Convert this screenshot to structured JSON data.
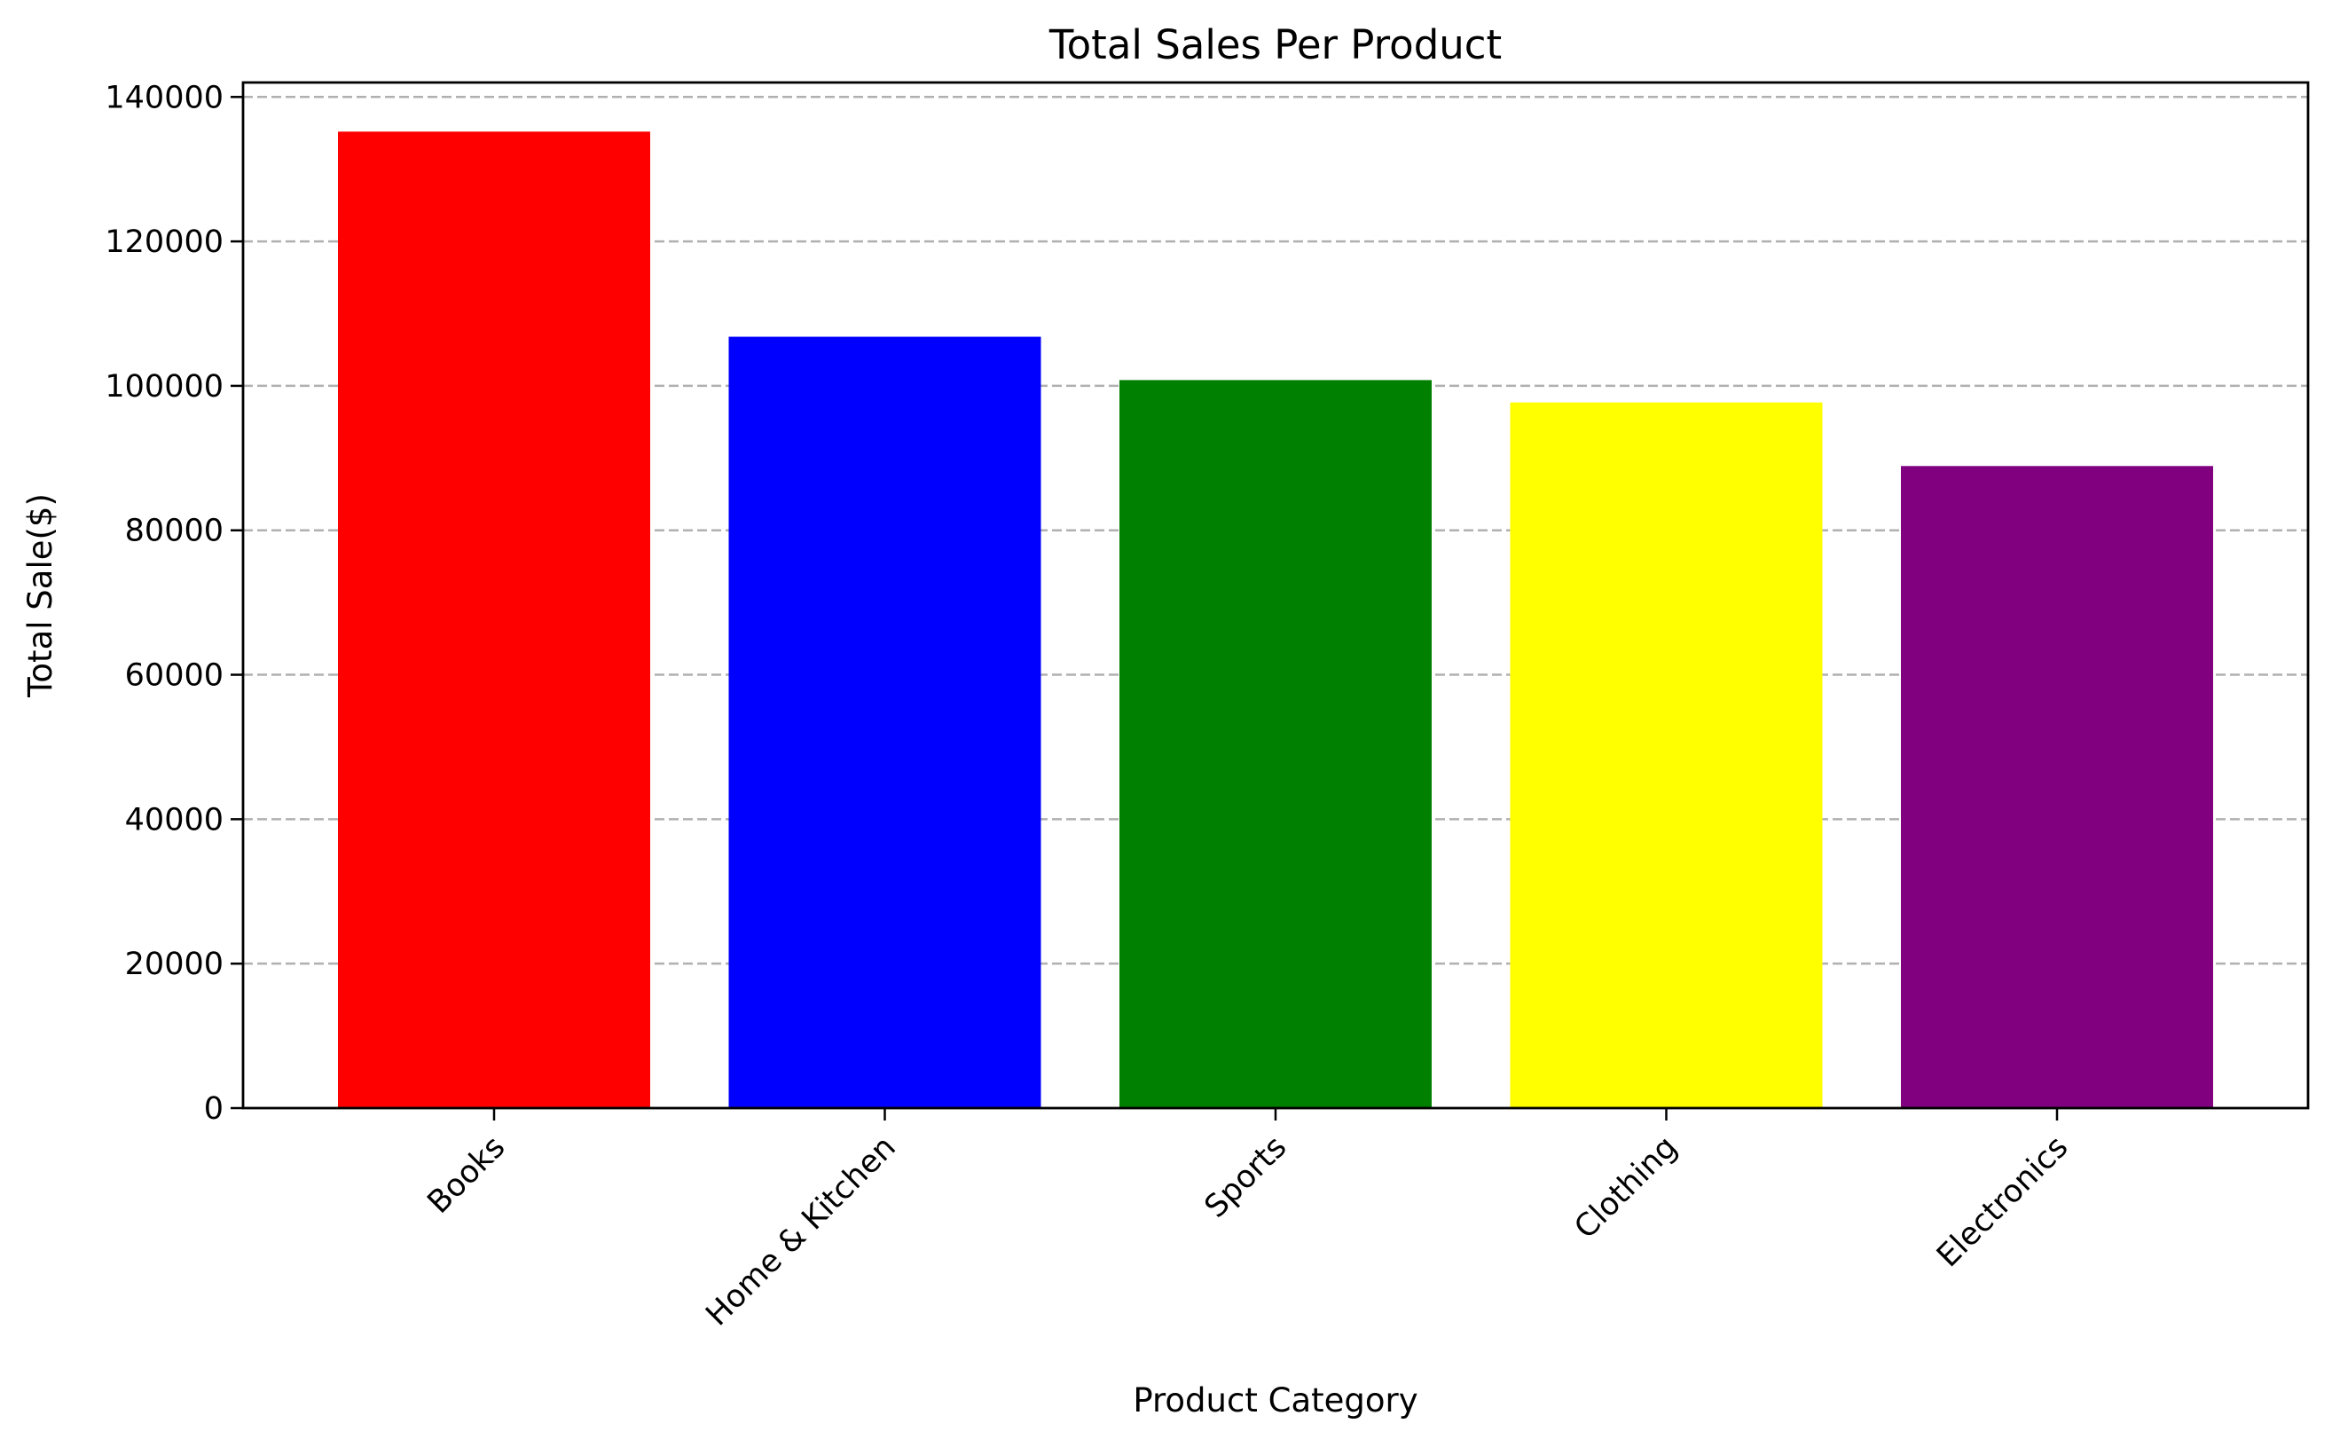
{
  "chart_data": {
    "type": "bar",
    "title": "Total Sales Per Product",
    "xlabel": "Product Category",
    "ylabel": "Total Sale($)",
    "categories": [
      "Books",
      "Home & Kitchen",
      "Sports",
      "Clothing",
      "Electronics"
    ],
    "values": [
      135200,
      106800,
      100800,
      97700,
      88900
    ],
    "colors": [
      "#ff0000",
      "#0000ff",
      "#008000",
      "#ffff00",
      "#800080"
    ],
    "ylim": [
      0,
      142000
    ],
    "yticks": [
      0,
      20000,
      40000,
      60000,
      80000,
      100000,
      120000,
      140000
    ],
    "grid": "y-dashed",
    "xtick_rotation": -45,
    "legend": "none"
  }
}
